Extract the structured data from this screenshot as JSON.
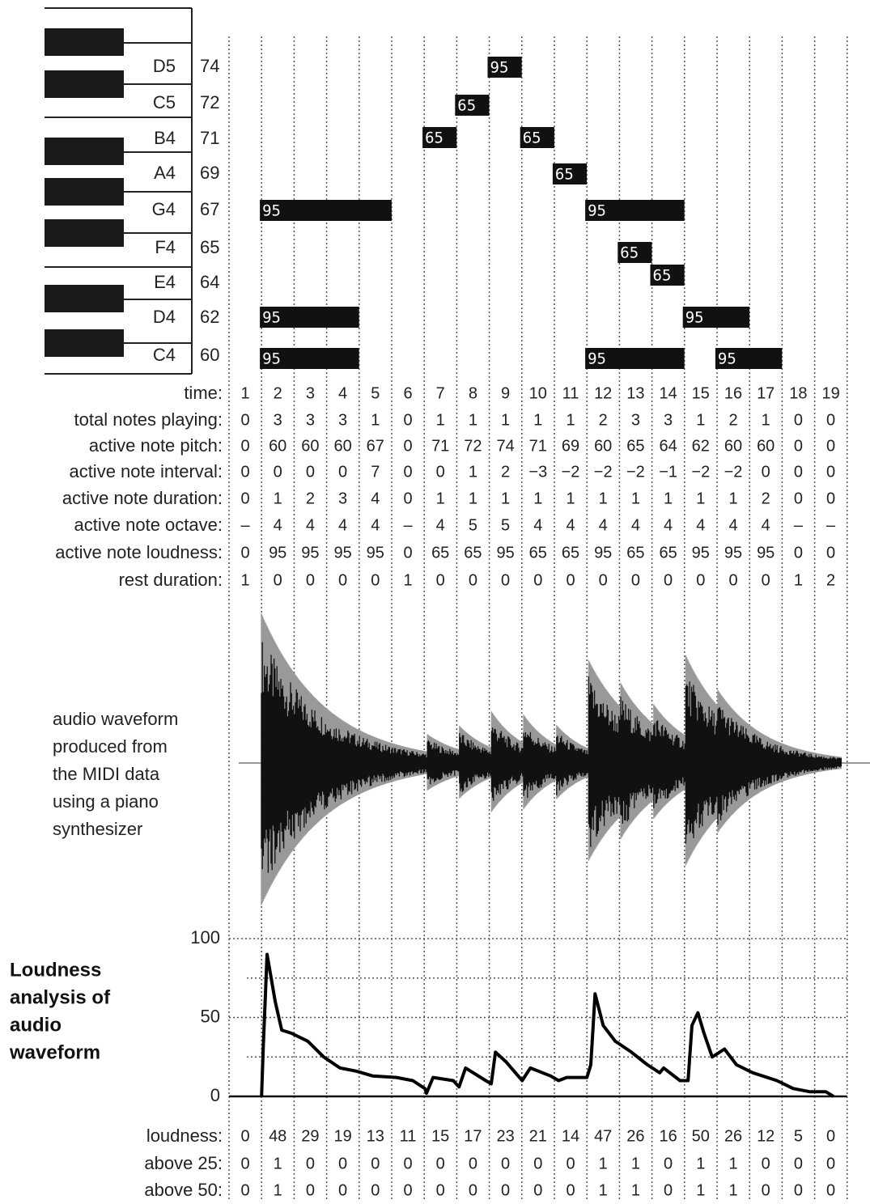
{
  "piano_roll": {
    "rows": [
      {
        "name": "D5",
        "pitch": 74
      },
      {
        "name": "C5",
        "pitch": 72
      },
      {
        "name": "B4",
        "pitch": 71
      },
      {
        "name": "A4",
        "pitch": 69
      },
      {
        "name": "G4",
        "pitch": 67
      },
      {
        "name": "F4",
        "pitch": 65
      },
      {
        "name": "E4",
        "pitch": 64
      },
      {
        "name": "D4",
        "pitch": 62
      },
      {
        "name": "C4",
        "pitch": 60
      }
    ],
    "notes": [
      {
        "pitch": 67,
        "start": 2,
        "duration": 4,
        "velocity": 95
      },
      {
        "pitch": 62,
        "start": 2,
        "duration": 3,
        "velocity": 95
      },
      {
        "pitch": 60,
        "start": 2,
        "duration": 3,
        "velocity": 95
      },
      {
        "pitch": 71,
        "start": 7,
        "duration": 1,
        "velocity": 65
      },
      {
        "pitch": 72,
        "start": 8,
        "duration": 1,
        "velocity": 65
      },
      {
        "pitch": 74,
        "start": 9,
        "duration": 1,
        "velocity": 95
      },
      {
        "pitch": 71,
        "start": 10,
        "duration": 1,
        "velocity": 65
      },
      {
        "pitch": 69,
        "start": 11,
        "duration": 1,
        "velocity": 65
      },
      {
        "pitch": 67,
        "start": 12,
        "duration": 3,
        "velocity": 95
      },
      {
        "pitch": 60,
        "start": 12,
        "duration": 3,
        "velocity": 95
      },
      {
        "pitch": 65,
        "start": 13,
        "duration": 1,
        "velocity": 65
      },
      {
        "pitch": 64,
        "start": 14,
        "duration": 1,
        "velocity": 65
      },
      {
        "pitch": 62,
        "start": 15,
        "duration": 2,
        "velocity": 95
      },
      {
        "pitch": 60,
        "start": 16,
        "duration": 2,
        "velocity": 95
      }
    ]
  },
  "table": {
    "rows": [
      {
        "label": "time:",
        "values": [
          1,
          2,
          3,
          4,
          5,
          6,
          7,
          8,
          9,
          10,
          11,
          12,
          13,
          14,
          15,
          16,
          17,
          18,
          19
        ]
      },
      {
        "label": "total notes playing:",
        "values": [
          0,
          3,
          3,
          3,
          1,
          0,
          1,
          1,
          1,
          1,
          1,
          2,
          3,
          3,
          1,
          2,
          1,
          0,
          0
        ]
      },
      {
        "label": "active note pitch:",
        "values": [
          0,
          60,
          60,
          60,
          67,
          0,
          71,
          72,
          74,
          71,
          69,
          60,
          65,
          64,
          62,
          60,
          60,
          0,
          0
        ]
      },
      {
        "label": "active note interval:",
        "values": [
          0,
          0,
          0,
          0,
          7,
          0,
          0,
          1,
          2,
          "−3",
          "−2",
          "−2",
          "−2",
          "−1",
          "−2",
          "−2",
          0,
          0,
          0
        ]
      },
      {
        "label": "active note duration:",
        "values": [
          0,
          1,
          2,
          3,
          4,
          0,
          1,
          1,
          1,
          1,
          1,
          1,
          1,
          1,
          1,
          1,
          2,
          0,
          0
        ]
      },
      {
        "label": "active note octave:",
        "values": [
          "–",
          4,
          4,
          4,
          4,
          "–",
          4,
          5,
          5,
          4,
          4,
          4,
          4,
          4,
          4,
          4,
          4,
          "–",
          "–"
        ]
      },
      {
        "label": "active note loudness:",
        "values": [
          0,
          95,
          95,
          95,
          95,
          0,
          65,
          65,
          95,
          65,
          65,
          95,
          65,
          65,
          95,
          95,
          95,
          0,
          0
        ]
      },
      {
        "label": "rest duration:",
        "values": [
          1,
          0,
          0,
          0,
          0,
          1,
          0,
          0,
          0,
          0,
          0,
          0,
          0,
          0,
          0,
          0,
          0,
          1,
          2
        ]
      }
    ]
  },
  "waveform_caption": [
    "audio waveform",
    "produced from",
    "the MIDI data",
    "using a piano",
    "synthesizer"
  ],
  "chart_data": {
    "type": "line",
    "title": [
      "Loudness",
      "analysis of",
      "audio",
      "waveform"
    ],
    "color": "#000000",
    "x": [
      1.5,
      1.55,
      1.67,
      1.92,
      2.12,
      2.42,
      2.92,
      3.41,
      3.91,
      4.41,
      4.91,
      5.65,
      6.15,
      6.52,
      6.57,
      6.77,
      7.39,
      7.57,
      7.77,
      8.39,
      8.56,
      8.69,
      9.01,
      9.51,
      9.76,
      10.38,
      10.63,
      10.88,
      11.5,
      11.62,
      11.75,
      12.0,
      12.37,
      12.87,
      13.36,
      13.74,
      13.86,
      14.36,
      14.61,
      14.73,
      14.91,
      15.1,
      15.35,
      15.73,
      16.1,
      16.6,
      17.34,
      17.84,
      18.34,
      18.84,
      19.08
    ],
    "values": [
      0,
      30,
      90,
      60,
      42,
      40,
      35,
      25,
      18,
      16,
      13,
      12,
      10,
      5,
      2,
      12,
      10,
      6,
      18,
      10,
      8,
      28,
      22,
      10,
      18,
      13,
      10,
      12,
      12,
      20,
      65,
      45,
      35,
      28,
      20,
      15,
      18,
      10,
      10,
      45,
      53,
      40,
      25,
      30,
      20,
      15,
      10,
      5,
      3,
      3,
      0
    ],
    "xlim": [
      0.5,
      19.5
    ],
    "ylim": [
      0,
      100
    ],
    "yticks": [
      0,
      50,
      100
    ],
    "minor_yticks": [
      25,
      75
    ],
    "grid": true
  },
  "loudness_table": {
    "rows": [
      {
        "label": "loudness:",
        "values": [
          0,
          48,
          29,
          19,
          13,
          11,
          15,
          17,
          23,
          21,
          14,
          47,
          26,
          16,
          50,
          26,
          12,
          5,
          0
        ]
      },
      {
        "label": "above 25:",
        "values": [
          0,
          1,
          0,
          0,
          0,
          0,
          0,
          0,
          0,
          0,
          0,
          1,
          1,
          0,
          1,
          1,
          0,
          0,
          0
        ]
      },
      {
        "label": "above 50:",
        "values": [
          0,
          1,
          0,
          0,
          0,
          0,
          0,
          0,
          0,
          0,
          0,
          1,
          1,
          0,
          1,
          1,
          0,
          0,
          0
        ]
      }
    ]
  }
}
